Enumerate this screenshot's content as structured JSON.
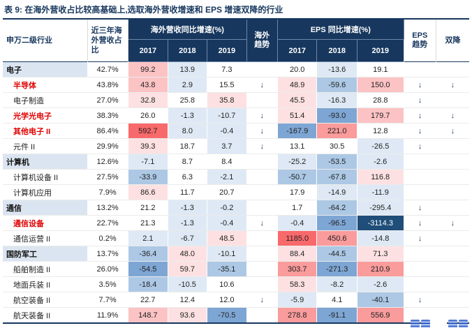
{
  "title": "表 9:  在海外营收占比较高基础上,选取海外营收增速和 EPS 增速双降的行业",
  "colors": {
    "navy": "#17375E",
    "section_bg": "#DBE5F1",
    "red_name": "#E00000",
    "extreme_high": "#F8696B",
    "extreme_low": "#1F4E79"
  },
  "palette": {
    "r4": "#F8696B",
    "r3": "#FA9B9C",
    "r2": "#FCC3C4",
    "r1": "#FDE1E2",
    "w1": "#FFFFFF",
    "b1": "#DEE9F5",
    "b2": "#ACC8E5",
    "b3": "#7EA6D4",
    "b4": "#1F4E79"
  },
  "header": {
    "industry": "申万二级行业",
    "pct": "近三年海外营收占比",
    "overseas_group": "海外营收同比增速(%)",
    "eps_group": "EPS 同比增速(%)",
    "years": [
      "2017",
      "2018",
      "2019"
    ],
    "overseas_trend": "海外趋势",
    "eps_trend": "EPS 趋势",
    "double_decline": "双降"
  },
  "rows": [
    {
      "name": "电子",
      "style": "section",
      "sep": false,
      "pct": "42.7%",
      "ov": [
        [
          "99.2",
          "r2"
        ],
        [
          "13.9",
          "b1"
        ],
        [
          "7.3",
          "w1"
        ]
      ],
      "ovt": "",
      "eps": [
        [
          "20.0",
          "w1"
        ],
        [
          "-13.6",
          "b1"
        ],
        [
          "19.1",
          "w1"
        ]
      ],
      "epst": "",
      "dd": ""
    },
    {
      "name": "半导体",
      "style": "red",
      "sep": false,
      "pct": "43.8%",
      "ov": [
        [
          "43.8",
          "r2"
        ],
        [
          "2.9",
          "b1"
        ],
        [
          "15.5",
          "w1"
        ]
      ],
      "ovt": "↓",
      "eps": [
        [
          "48.9",
          "r1"
        ],
        [
          "-59.6",
          "b2"
        ],
        [
          "150.0",
          "r2"
        ]
      ],
      "epst": "↓",
      "dd": "↓"
    },
    {
      "name": "电子制造",
      "style": "sub",
      "sep": false,
      "pct": "27.0%",
      "ov": [
        [
          "32.8",
          "r1"
        ],
        [
          "25.8",
          "w1"
        ],
        [
          "35.8",
          "r1"
        ]
      ],
      "ovt": "",
      "eps": [
        [
          "45.5",
          "r1"
        ],
        [
          "-16.3",
          "b1"
        ],
        [
          "28.8",
          "w1"
        ]
      ],
      "epst": "↓",
      "dd": ""
    },
    {
      "name": "光学光电子",
      "style": "red",
      "sep": false,
      "pct": "38.3%",
      "ov": [
        [
          "26.0",
          "w1"
        ],
        [
          "-1.3",
          "b1"
        ],
        [
          "-10.7",
          "b1"
        ]
      ],
      "ovt": "↓",
      "eps": [
        [
          "51.4",
          "r1"
        ],
        [
          "-93.0",
          "b3"
        ],
        [
          "179.7",
          "r2"
        ]
      ],
      "epst": "↓",
      "dd": "↓"
    },
    {
      "name": "其他电子 II",
      "style": "red",
      "sep": false,
      "pct": "86.4%",
      "ov": [
        [
          "592.7",
          "r4"
        ],
        [
          "8.0",
          "b1"
        ],
        [
          "-0.4",
          "b1"
        ]
      ],
      "ovt": "↓",
      "eps": [
        [
          "-167.9",
          "b3"
        ],
        [
          "221.0",
          "r3"
        ],
        [
          "12.8",
          "w1"
        ]
      ],
      "epst": "↓",
      "dd": "↓"
    },
    {
      "name": "元件 II",
      "style": "sub",
      "sep": false,
      "pct": "29.9%",
      "ov": [
        [
          "39.3",
          "r1"
        ],
        [
          "18.7",
          "w1"
        ],
        [
          "3.7",
          "b1"
        ]
      ],
      "ovt": "↓",
      "eps": [
        [
          "13.1",
          "w1"
        ],
        [
          "30.5",
          "w1"
        ],
        [
          "-26.5",
          "b1"
        ]
      ],
      "epst": "↓",
      "dd": ""
    },
    {
      "name": "计算机",
      "style": "section",
      "sep": true,
      "pct": "12.6%",
      "ov": [
        [
          "-7.1",
          "b1"
        ],
        [
          "8.7",
          "w1"
        ],
        [
          "8.4",
          "w1"
        ]
      ],
      "ovt": "",
      "eps": [
        [
          "-25.2",
          "b1"
        ],
        [
          "-53.5",
          "b2"
        ],
        [
          "-2.6",
          "b1"
        ]
      ],
      "epst": "",
      "dd": ""
    },
    {
      "name": "计算机设备 II",
      "style": "sub",
      "sep": false,
      "pct": "27.5%",
      "ov": [
        [
          "-33.9",
          "b2"
        ],
        [
          "6.3",
          "w1"
        ],
        [
          "-2.1",
          "b1"
        ]
      ],
      "ovt": "",
      "eps": [
        [
          "-50.7",
          "b2"
        ],
        [
          "-67.8",
          "b2"
        ],
        [
          "116.8",
          "r1"
        ]
      ],
      "epst": "",
      "dd": ""
    },
    {
      "name": "计算机应用",
      "style": "sub",
      "sep": false,
      "pct": "7.9%",
      "ov": [
        [
          "86.6",
          "r1"
        ],
        [
          "11.7",
          "w1"
        ],
        [
          "20.7",
          "w1"
        ]
      ],
      "ovt": "",
      "eps": [
        [
          "17.9",
          "w1"
        ],
        [
          "-14.9",
          "b1"
        ],
        [
          "-11.9",
          "b1"
        ]
      ],
      "epst": "",
      "dd": ""
    },
    {
      "name": "通信",
      "style": "section",
      "sep": true,
      "pct": "13.2%",
      "ov": [
        [
          "21.2",
          "w1"
        ],
        [
          "-1.3",
          "b1"
        ],
        [
          "-0.2",
          "b1"
        ]
      ],
      "ovt": "",
      "eps": [
        [
          "1.7",
          "w1"
        ],
        [
          "-64.2",
          "b2"
        ],
        [
          "-295.4",
          "b1"
        ]
      ],
      "epst": "↓",
      "dd": ""
    },
    {
      "name": "通信设备",
      "style": "red",
      "sep": false,
      "pct": "22.7%",
      "ov": [
        [
          "21.3",
          "w1"
        ],
        [
          "-1.3",
          "b1"
        ],
        [
          "-0.4",
          "b1"
        ]
      ],
      "ovt": "↓",
      "eps": [
        [
          "-0.4",
          "b1"
        ],
        [
          "-96.5",
          "b3"
        ],
        [
          "-3114.3",
          "b4"
        ]
      ],
      "epst": "↓",
      "dd": "↓"
    },
    {
      "name": "通信运营 II",
      "style": "sub",
      "sep": false,
      "pct": "0.2%",
      "ov": [
        [
          "2.1",
          "b1"
        ],
        [
          "-6.7",
          "b1"
        ],
        [
          "48.5",
          "r1"
        ]
      ],
      "ovt": "",
      "eps": [
        [
          "1185.0",
          "r4"
        ],
        [
          "450.6",
          "r3"
        ],
        [
          "-14.8",
          "b1"
        ]
      ],
      "epst": "↓",
      "dd": ""
    },
    {
      "name": "国防军工",
      "style": "section",
      "sep": true,
      "pct": "13.7%",
      "ov": [
        [
          "-36.4",
          "b2"
        ],
        [
          "48.0",
          "r1"
        ],
        [
          "-10.1",
          "b1"
        ]
      ],
      "ovt": "",
      "eps": [
        [
          "88.4",
          "r1"
        ],
        [
          "-44.5",
          "b2"
        ],
        [
          "71.3",
          "r1"
        ]
      ],
      "epst": "",
      "dd": ""
    },
    {
      "name": "船舶制造 II",
      "style": "sub",
      "sep": false,
      "pct": "26.0%",
      "ov": [
        [
          "-54.5",
          "b3"
        ],
        [
          "59.7",
          "r1"
        ],
        [
          "-35.1",
          "b2"
        ]
      ],
      "ovt": "",
      "eps": [
        [
          "303.7",
          "r3"
        ],
        [
          "-271.3",
          "b3"
        ],
        [
          "210.9",
          "r3"
        ]
      ],
      "epst": "",
      "dd": ""
    },
    {
      "name": "地面兵装 II",
      "style": "sub",
      "sep": false,
      "pct": "3.5%",
      "ov": [
        [
          "-18.4",
          "b2"
        ],
        [
          "-10.5",
          "b1"
        ],
        [
          "10.6",
          "w1"
        ]
      ],
      "ovt": "",
      "eps": [
        [
          "58.3",
          "r1"
        ],
        [
          "-8.2",
          "b1"
        ],
        [
          "-2.6",
          "b1"
        ]
      ],
      "epst": "",
      "dd": ""
    },
    {
      "name": "航空装备 II",
      "style": "sub",
      "sep": false,
      "pct": "7.7%",
      "ov": [
        [
          "22.7",
          "w1"
        ],
        [
          "12.4",
          "w1"
        ],
        [
          "12.0",
          "w1"
        ]
      ],
      "ovt": "↓",
      "eps": [
        [
          "-5.9",
          "b1"
        ],
        [
          "4.1",
          "w1"
        ],
        [
          "-40.1",
          "b2"
        ]
      ],
      "epst": "↓",
      "dd": ""
    },
    {
      "name": "航天装备 II",
      "style": "sub",
      "sep": false,
      "pct": "11.9%",
      "ov": [
        [
          "148.7",
          "r2"
        ],
        [
          "93.6",
          "r1"
        ],
        [
          "-70.5",
          "b3"
        ]
      ],
      "ovt": "",
      "eps": [
        [
          "278.8",
          "r3"
        ],
        [
          "-91.1",
          "b3"
        ],
        [
          "556.9",
          "r3"
        ]
      ],
      "epst": "",
      "dd": ""
    }
  ]
}
